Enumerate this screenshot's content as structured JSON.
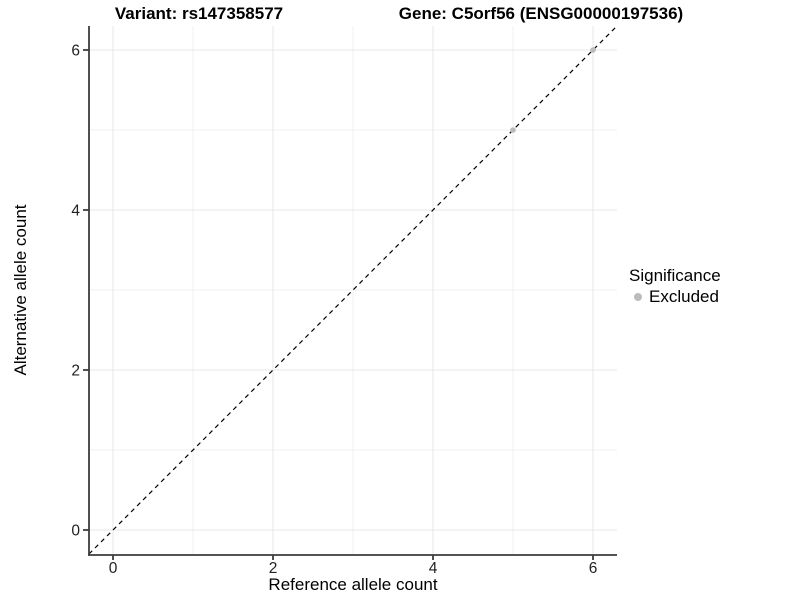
{
  "header": {
    "title_left": "Variant: rs147358577",
    "title_right": "Gene: C5orf56 (ENSG00000197536)"
  },
  "axes": {
    "xlabel": "Reference allele count",
    "ylabel": "Alternative allele count"
  },
  "legend": {
    "title": "Significance",
    "items": [
      {
        "label": "Excluded",
        "color": "#bcbcbc"
      }
    ]
  },
  "chart_data": {
    "type": "scatter",
    "title_left": "Variant: rs147358577",
    "title_right": "Gene: C5orf56 (ENSG00000197536)",
    "xlabel": "Reference allele count",
    "ylabel": "Alternative allele count",
    "xlim": [
      -0.3,
      6.3
    ],
    "ylim": [
      -0.3,
      6.3
    ],
    "xticks": [
      0,
      2,
      4,
      6
    ],
    "yticks": [
      0,
      2,
      4,
      6
    ],
    "minor_gridlines": [
      1,
      3,
      5
    ],
    "grid": "on",
    "legend_position": "right",
    "identity_line": {
      "style": "dashed",
      "color": "#000000",
      "from": [
        -0.3,
        -0.3
      ],
      "to": [
        6.3,
        6.3
      ]
    },
    "series": [
      {
        "name": "Excluded",
        "color": "#bcbcbc",
        "points": [
          [
            5,
            5
          ],
          [
            6,
            6
          ]
        ]
      }
    ],
    "colors": {
      "grid_major": "#e7e7e7",
      "grid_minor": "#f0f0f0",
      "axis_line": "#3c3c3c",
      "tick_label": "#222222"
    }
  }
}
